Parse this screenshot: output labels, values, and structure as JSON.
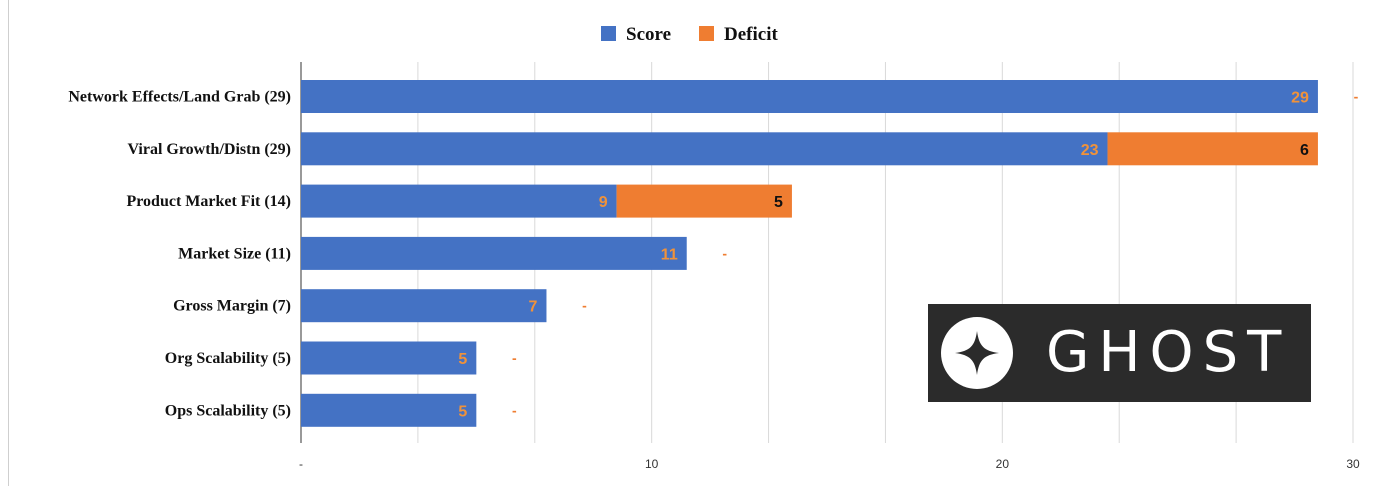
{
  "colors": {
    "score": "#4472c4",
    "deficit": "#ef7d31",
    "grid": "#d9d9d9",
    "axis": "#333333"
  },
  "logo": {
    "text": "GHOST",
    "icon": "ghost-logo-icon"
  },
  "chart_data": {
    "type": "bar",
    "orientation": "horizontal",
    "stacked": true,
    "legend": {
      "placement": "top-center",
      "entries": [
        "Score",
        "Deficit"
      ]
    },
    "categories": [
      "Network Effects/Land Grab (29)",
      "Viral Growth/Distn (29)",
      "Product Market Fit (14)",
      "Market Size (11)",
      "Gross Margin (7)",
      "Org Scalability (5)",
      "Ops Scalability (5)"
    ],
    "series": [
      {
        "name": "Score",
        "values": [
          29,
          23,
          9,
          11,
          7,
          5,
          5
        ],
        "labels": [
          "29",
          "23",
          "9",
          "11",
          "7",
          "5",
          "5"
        ]
      },
      {
        "name": "Deficit",
        "values": [
          0,
          6,
          5,
          0,
          0,
          0,
          0
        ],
        "labels": [
          "-",
          "6",
          "5",
          "-",
          "-",
          "-",
          "-"
        ]
      }
    ],
    "x_ticks": [
      {
        "value": 0,
        "label": "-"
      },
      {
        "value": 10,
        "label": "10"
      },
      {
        "value": 20,
        "label": "20"
      },
      {
        "value": 30,
        "label": "30"
      }
    ],
    "xlim": [
      0,
      30
    ],
    "grid": true
  }
}
